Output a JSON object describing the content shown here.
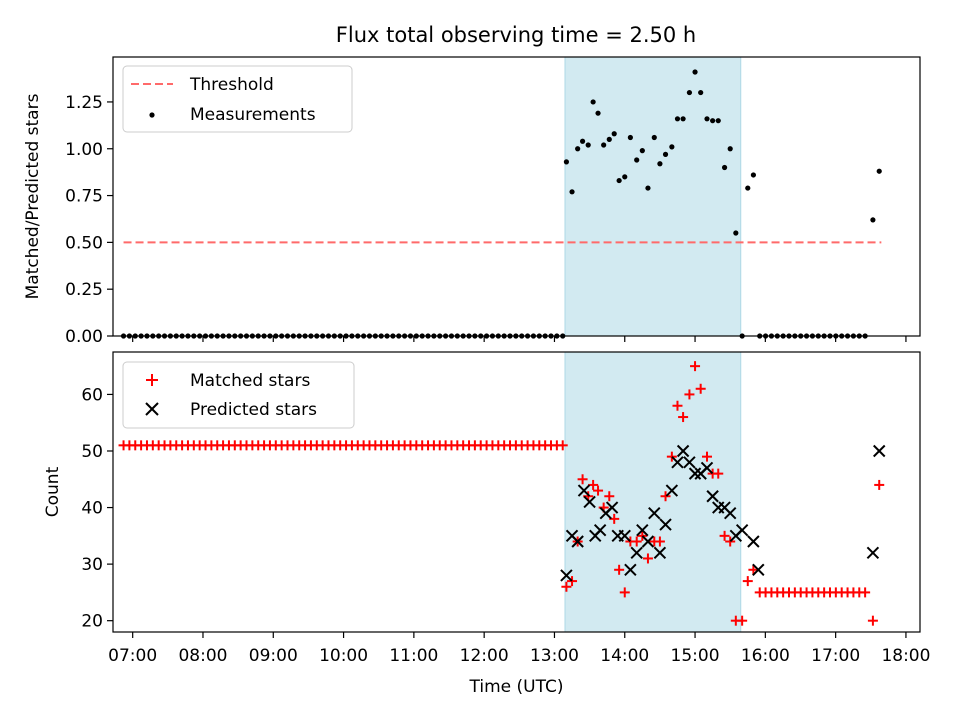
{
  "figure": {
    "title": "Flux total observing time = 2.50 h"
  },
  "chart_data": [
    {
      "type": "scatter",
      "name": "top",
      "ylabel": "Matched/Predicted stars",
      "xlabel": "",
      "xlim": [
        6.72,
        18.2
      ],
      "ylim": [
        0,
        1.49
      ],
      "yticks": [
        0,
        0.25,
        0.5,
        0.75,
        1.0,
        1.25
      ],
      "ytick_labels": [
        "0.00",
        "0.25",
        "0.50",
        "0.75",
        "1.00",
        "1.25"
      ],
      "shade": {
        "x0": 13.15,
        "x1": 15.65,
        "color": "#add8e6"
      },
      "threshold": {
        "name": "Threshold",
        "value": 0.5,
        "x0": 6.87,
        "x1": 17.65,
        "color": "#ff6a6a"
      },
      "legend": {
        "position": "top-left",
        "entries": [
          "Threshold",
          "Measurements"
        ]
      },
      "series": [
        {
          "name": "Measurements",
          "marker": "dot",
          "color": "#000000",
          "points": [
            [
              13.17,
              0.93
            ],
            [
              13.25,
              0.77
            ],
            [
              13.33,
              1.0
            ],
            [
              13.4,
              1.04
            ],
            [
              13.48,
              1.02
            ],
            [
              13.55,
              1.25
            ],
            [
              13.62,
              1.19
            ],
            [
              13.7,
              1.02
            ],
            [
              13.78,
              1.05
            ],
            [
              13.85,
              1.08
            ],
            [
              13.92,
              0.83
            ],
            [
              14.0,
              0.85
            ],
            [
              14.08,
              1.06
            ],
            [
              14.17,
              0.94
            ],
            [
              14.25,
              0.99
            ],
            [
              14.33,
              0.79
            ],
            [
              14.42,
              1.06
            ],
            [
              14.5,
              0.92
            ],
            [
              14.58,
              0.97
            ],
            [
              14.67,
              1.01
            ],
            [
              14.75,
              1.16
            ],
            [
              14.83,
              1.16
            ],
            [
              14.92,
              1.3
            ],
            [
              15.0,
              1.41
            ],
            [
              15.08,
              1.3
            ],
            [
              15.17,
              1.16
            ],
            [
              15.25,
              1.15
            ],
            [
              15.33,
              1.15
            ],
            [
              15.42,
              0.9
            ],
            [
              15.5,
              1.0
            ],
            [
              15.58,
              0.55
            ],
            [
              15.67,
              0.0
            ],
            [
              15.75,
              0.79
            ],
            [
              15.83,
              0.86
            ],
            [
              17.53,
              0.62
            ],
            [
              17.62,
              0.88
            ]
          ],
          "zero_run": [
            {
              "x0": 6.87,
              "x1": 13.12,
              "step": 0.0833
            },
            {
              "x0": 15.92,
              "x1": 17.45,
              "step": 0.0833
            }
          ]
        }
      ]
    },
    {
      "type": "scatter",
      "name": "bottom",
      "ylabel": "Count",
      "xlabel": "Time (UTC)",
      "xlim": [
        6.72,
        18.2
      ],
      "ylim": [
        18,
        67.5
      ],
      "yticks": [
        20,
        30,
        40,
        50,
        60
      ],
      "ytick_labels": [
        "20",
        "30",
        "40",
        "50",
        "60"
      ],
      "xticks": [
        7,
        8,
        9,
        10,
        11,
        12,
        13,
        14,
        15,
        16,
        17,
        18
      ],
      "xtick_labels": [
        "07:00",
        "08:00",
        "09:00",
        "10:00",
        "11:00",
        "12:00",
        "13:00",
        "14:00",
        "15:00",
        "16:00",
        "17:00",
        "18:00"
      ],
      "shade": {
        "x0": 13.15,
        "x1": 15.65,
        "color": "#add8e6"
      },
      "legend": {
        "position": "top-left",
        "entries": [
          "Matched stars",
          "Predicted stars"
        ]
      },
      "series": [
        {
          "name": "Matched stars",
          "marker": "plus",
          "color": "#ff0000",
          "points": [
            [
              13.17,
              26
            ],
            [
              13.25,
              27
            ],
            [
              13.33,
              34
            ],
            [
              13.4,
              45
            ],
            [
              13.48,
              42
            ],
            [
              13.55,
              44
            ],
            [
              13.62,
              43
            ],
            [
              13.7,
              40
            ],
            [
              13.78,
              42
            ],
            [
              13.85,
              38
            ],
            [
              13.92,
              29
            ],
            [
              14.0,
              25
            ],
            [
              14.08,
              34
            ],
            [
              14.17,
              34
            ],
            [
              14.25,
              35
            ],
            [
              14.33,
              31
            ],
            [
              14.42,
              34
            ],
            [
              14.5,
              34
            ],
            [
              14.58,
              42
            ],
            [
              14.67,
              49
            ],
            [
              14.75,
              58
            ],
            [
              14.83,
              56
            ],
            [
              14.92,
              60
            ],
            [
              15.0,
              65
            ],
            [
              15.08,
              61
            ],
            [
              15.17,
              49
            ],
            [
              15.25,
              46
            ],
            [
              15.33,
              46
            ],
            [
              15.42,
              35
            ],
            [
              15.5,
              34
            ],
            [
              15.58,
              20
            ],
            [
              15.67,
              20
            ],
            [
              15.75,
              27
            ],
            [
              15.83,
              29
            ],
            [
              17.53,
              20
            ],
            [
              17.62,
              44
            ]
          ],
          "runs": [
            {
              "x0": 6.87,
              "x1": 13.12,
              "step": 0.0833,
              "value": 51
            },
            {
              "x0": 15.92,
              "x1": 17.45,
              "step": 0.0833,
              "value": 25
            }
          ]
        },
        {
          "name": "Predicted stars",
          "marker": "x",
          "color": "#000000",
          "points": [
            [
              13.17,
              28
            ],
            [
              13.25,
              35
            ],
            [
              13.33,
              34
            ],
            [
              13.42,
              43
            ],
            [
              13.5,
              41
            ],
            [
              13.58,
              35
            ],
            [
              13.65,
              36
            ],
            [
              13.73,
              39
            ],
            [
              13.82,
              40
            ],
            [
              13.9,
              35
            ],
            [
              14.0,
              35
            ],
            [
              14.08,
              29
            ],
            [
              14.17,
              32
            ],
            [
              14.25,
              36
            ],
            [
              14.33,
              34
            ],
            [
              14.42,
              39
            ],
            [
              14.5,
              32
            ],
            [
              14.58,
              37
            ],
            [
              14.67,
              43
            ],
            [
              14.75,
              48
            ],
            [
              14.83,
              50
            ],
            [
              14.92,
              48
            ],
            [
              15.0,
              46
            ],
            [
              15.08,
              46
            ],
            [
              15.17,
              47
            ],
            [
              15.25,
              42
            ],
            [
              15.33,
              40
            ],
            [
              15.42,
              40
            ],
            [
              15.5,
              39
            ],
            [
              15.58,
              35
            ],
            [
              15.67,
              36
            ],
            [
              15.83,
              34
            ],
            [
              15.9,
              29
            ],
            [
              17.53,
              32
            ],
            [
              17.62,
              50
            ]
          ]
        }
      ]
    }
  ]
}
